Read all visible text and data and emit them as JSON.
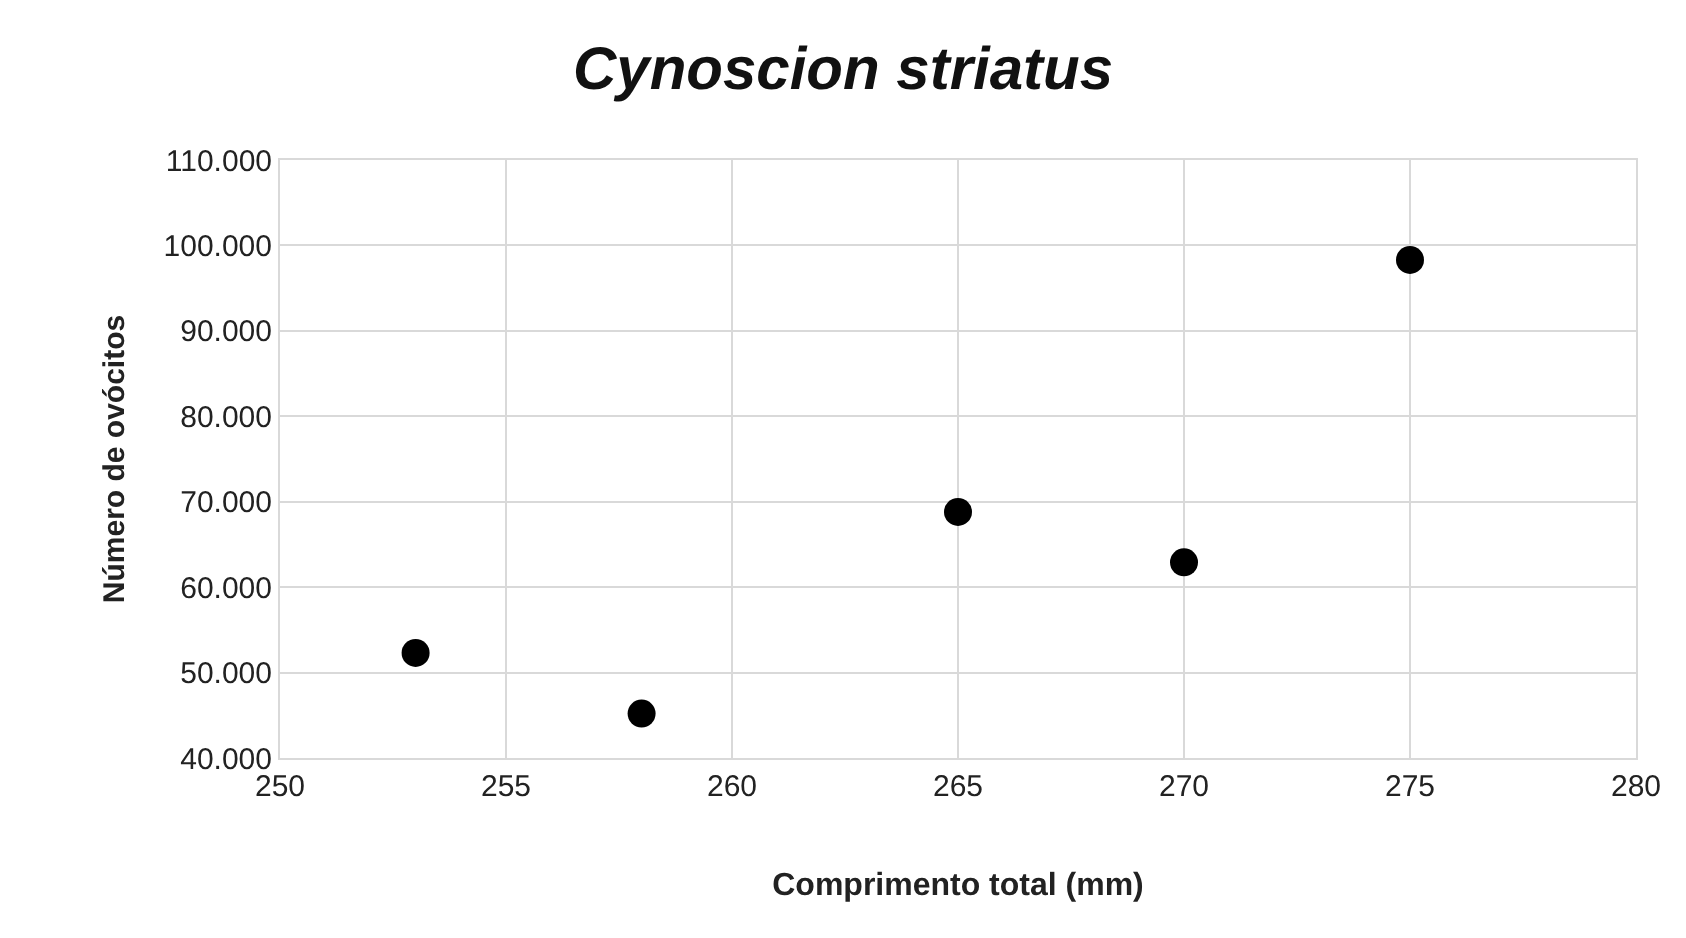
{
  "chart_data": {
    "type": "scatter",
    "title": "Cynoscion striatus",
    "xlabel": "Comprimento total (mm)",
    "ylabel": "Número de ovócitos",
    "x": [
      253,
      258,
      265,
      270,
      275
    ],
    "series": [
      {
        "color": "#000000",
        "values": [
          52300,
          45200,
          68800,
          62900,
          98300
        ]
      }
    ],
    "xlim": [
      250,
      280
    ],
    "xticks": [
      250,
      255,
      260,
      265,
      270,
      275,
      280
    ],
    "ylim": [
      40000,
      110000
    ],
    "yticks": [
      {
        "value": 40000,
        "label": "40.000"
      },
      {
        "value": 50000,
        "label": "50.000"
      },
      {
        "value": 60000,
        "label": "60.000"
      },
      {
        "value": 70000,
        "label": "70.000"
      },
      {
        "value": 80000,
        "label": "80.000"
      },
      {
        "value": 90000,
        "label": "90.000"
      },
      {
        "value": 100000,
        "label": "100.000"
      },
      {
        "value": 110000,
        "label": "110.000"
      }
    ],
    "grid": true,
    "marker": "circle",
    "legend": false
  }
}
